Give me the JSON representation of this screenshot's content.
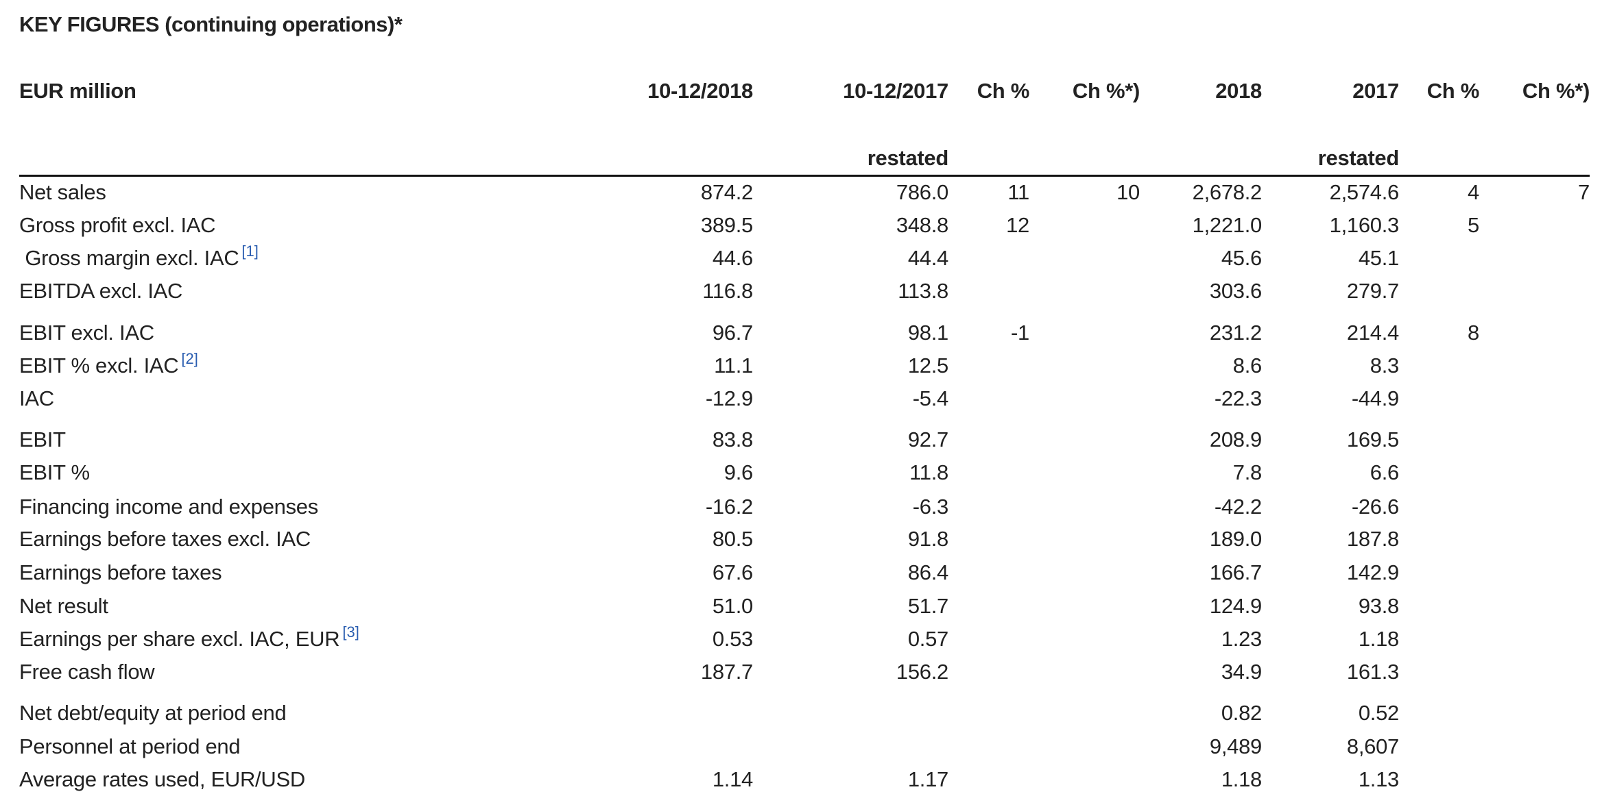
{
  "title": "KEY FIGURES (continuing operations)*",
  "header": {
    "label": "EUR million",
    "columns": [
      "10-12/2018",
      "10-12/2017",
      "Ch %",
      "Ch %*)",
      "2018",
      "2017",
      "Ch %",
      "Ch %*)"
    ],
    "subheaders": [
      "",
      "restated",
      "",
      "",
      "",
      "restated",
      "",
      ""
    ]
  },
  "footnote_color": "#2a5db0",
  "rows": [
    {
      "label": "Net sales",
      "values": [
        "874.2",
        "786.0",
        "11",
        "10",
        "2,678.2",
        "2,574.6",
        "4",
        "7"
      ]
    },
    {
      "label": "Gross profit excl. IAC",
      "values": [
        "389.5",
        "348.8",
        "12",
        "",
        "1,221.0",
        "1,160.3",
        "5",
        ""
      ]
    },
    {
      "label": " Gross margin excl. IAC",
      "footnote": "[1]",
      "values": [
        "44.6",
        "44.4",
        "",
        "",
        "45.6",
        "45.1",
        "",
        ""
      ]
    },
    {
      "label": "EBITDA excl. IAC",
      "values": [
        "116.8",
        "113.8",
        "",
        "",
        "303.6",
        "279.7",
        "",
        ""
      ]
    },
    {
      "label": "EBIT excl. IAC",
      "values": [
        "96.7",
        "98.1",
        "-1",
        "",
        "231.2",
        "214.4",
        "8",
        ""
      ]
    },
    {
      "label": "EBIT % excl. IAC",
      "footnote": "[2]",
      "values": [
        "11.1",
        "12.5",
        "",
        "",
        "8.6",
        "8.3",
        "",
        ""
      ]
    },
    {
      "label": "IAC",
      "values": [
        "-12.9",
        "-5.4",
        "",
        "",
        "-22.3",
        "-44.9",
        "",
        ""
      ]
    },
    {
      "label": "EBIT",
      "values": [
        "83.8",
        "92.7",
        "",
        "",
        "208.9",
        "169.5",
        "",
        ""
      ]
    },
    {
      "label": "EBIT %",
      "values": [
        "9.6",
        "11.8",
        "",
        "",
        "7.8",
        "6.6",
        "",
        ""
      ]
    },
    {
      "label": "Financing income and expenses",
      "values": [
        "-16.2",
        "-6.3",
        "",
        "",
        "-42.2",
        "-26.6",
        "",
        ""
      ]
    },
    {
      "label": "Earnings before taxes excl. IAC",
      "values": [
        "80.5",
        "91.8",
        "",
        "",
        "189.0",
        "187.8",
        "",
        ""
      ]
    },
    {
      "label": "Earnings before taxes",
      "values": [
        "67.6",
        "86.4",
        "",
        "",
        "166.7",
        "142.9",
        "",
        ""
      ]
    },
    {
      "label": "Net result",
      "values": [
        "51.0",
        "51.7",
        "",
        "",
        "124.9",
        "93.8",
        "",
        ""
      ]
    },
    {
      "label": "Earnings per share excl. IAC, EUR",
      "footnote": "[3]",
      "values": [
        "0.53",
        "0.57",
        "",
        "",
        "1.23",
        "1.18",
        "",
        ""
      ]
    },
    {
      "label": "Free cash flow",
      "values": [
        "187.7",
        "156.2",
        "",
        "",
        "34.9",
        "161.3",
        "",
        ""
      ]
    },
    {
      "label": "Net debt/equity at period end",
      "values": [
        "",
        "",
        "",
        "",
        "0.82",
        "0.52",
        "",
        ""
      ]
    },
    {
      "label": "Personnel at period end",
      "values": [
        "",
        "",
        "",
        "",
        "9,489",
        "8,607",
        "",
        ""
      ]
    },
    {
      "label": "Average rates used, EUR/USD",
      "values": [
        "1.14",
        "1.17",
        "",
        "",
        "1.18",
        "1.13",
        "",
        ""
      ]
    }
  ]
}
